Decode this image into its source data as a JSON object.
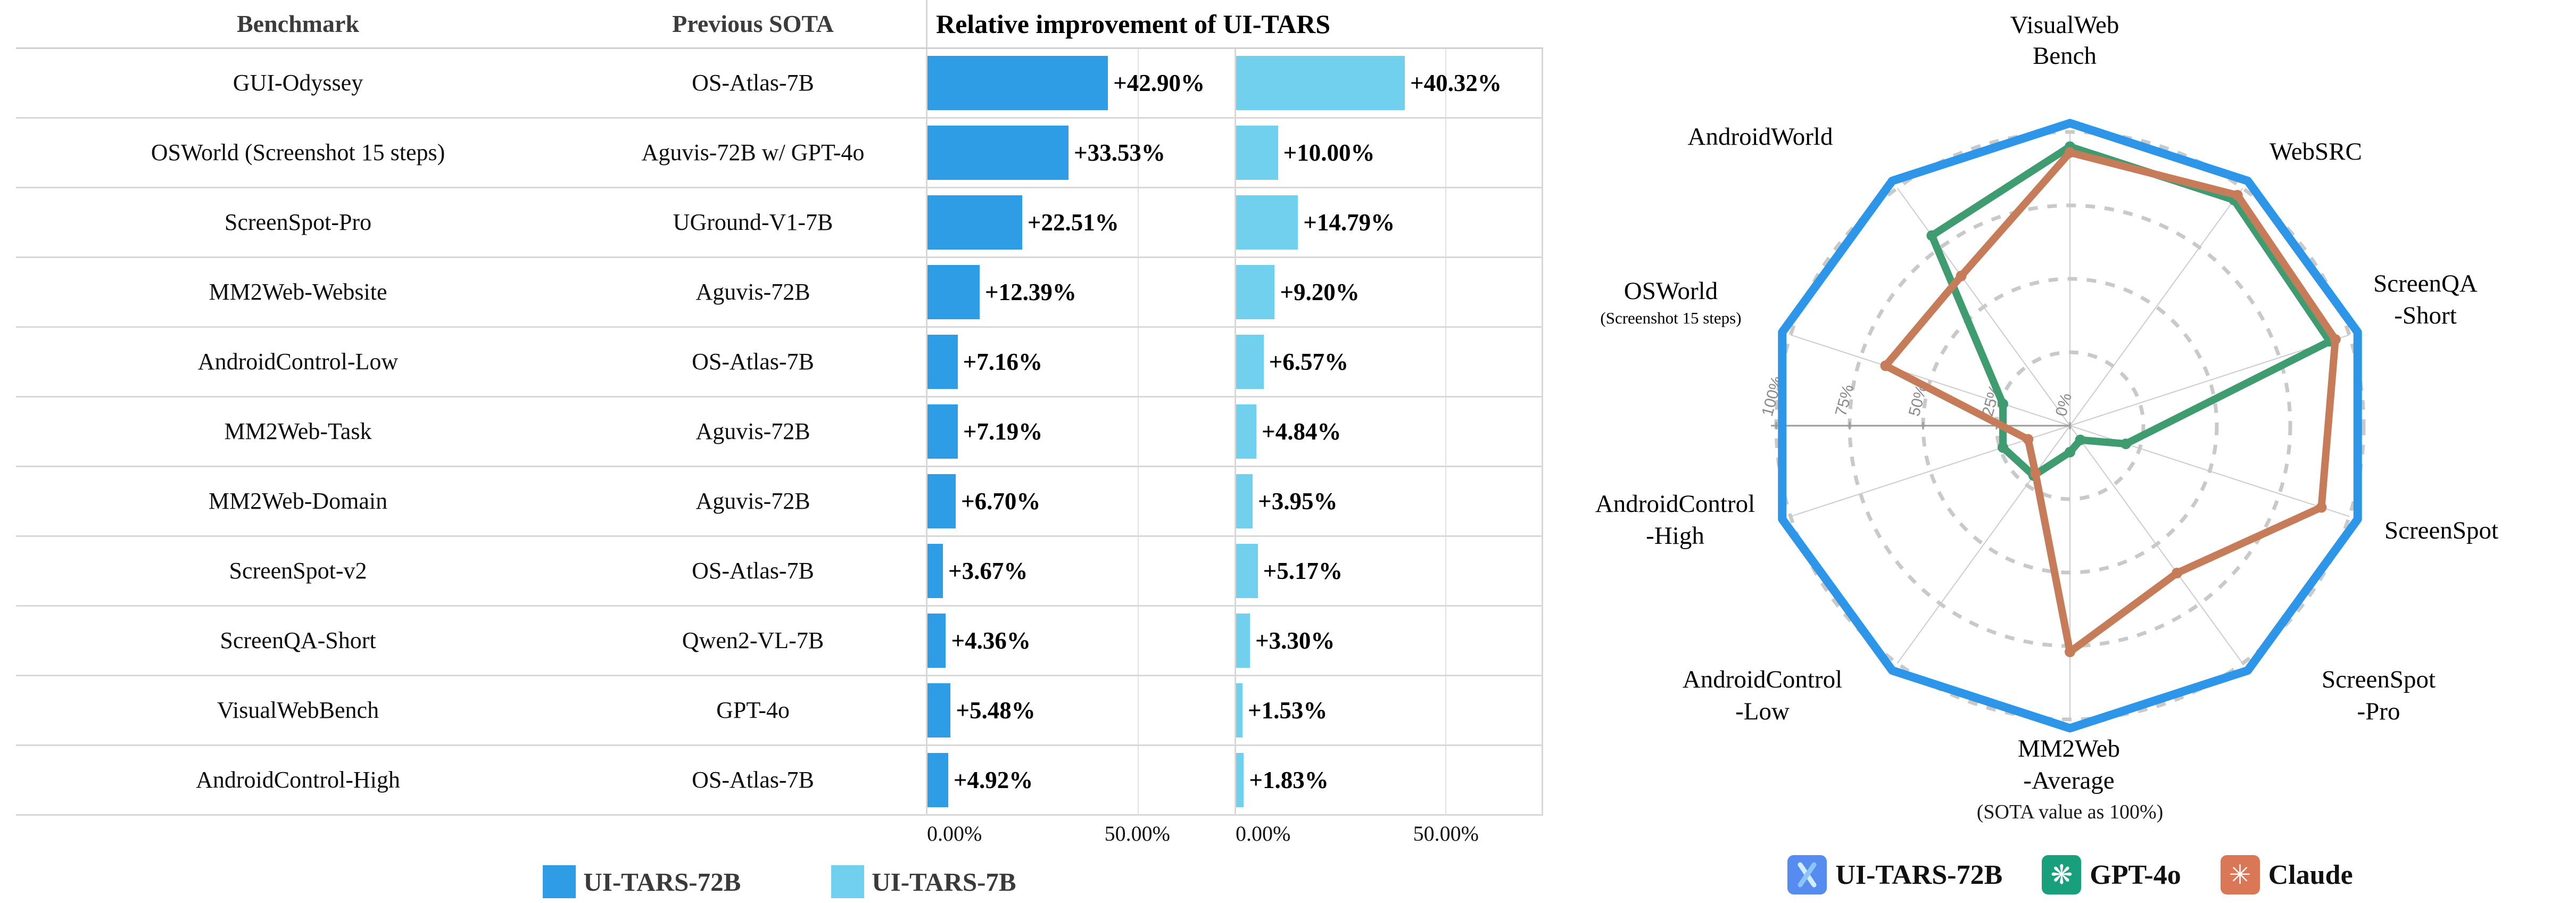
{
  "table": {
    "headers": {
      "benchmark": "Benchmark",
      "previous_sota": "Previous SOTA",
      "improvement": "Relative improvement of UI-TARS"
    },
    "rows": [
      {
        "benchmark": "GUI-Odyssey",
        "previous_sota": "OS-Atlas-7B",
        "uitars_72b_label": "+42.90%",
        "uitars_72b": 42.9,
        "uitars_7b_label": "+40.32%",
        "uitars_7b": 40.32
      },
      {
        "benchmark": "OSWorld (Screenshot 15 steps)",
        "previous_sota": "Aguvis-72B w/ GPT-4o",
        "uitars_72b_label": "+33.53%",
        "uitars_72b": 33.53,
        "uitars_7b_label": "+10.00%",
        "uitars_7b": 10.0
      },
      {
        "benchmark": "ScreenSpot-Pro",
        "previous_sota": "UGround-V1-7B",
        "uitars_72b_label": "+22.51%",
        "uitars_72b": 22.51,
        "uitars_7b_label": "+14.79%",
        "uitars_7b": 14.79
      },
      {
        "benchmark": "MM2Web-Website",
        "previous_sota": "Aguvis-72B",
        "uitars_72b_label": "+12.39%",
        "uitars_72b": 12.39,
        "uitars_7b_label": "+9.20%",
        "uitars_7b": 9.2
      },
      {
        "benchmark": "AndroidControl-Low",
        "previous_sota": "OS-Atlas-7B",
        "uitars_72b_label": "+7.16%",
        "uitars_72b": 7.16,
        "uitars_7b_label": "+6.57%",
        "uitars_7b": 6.57
      },
      {
        "benchmark": "MM2Web-Task",
        "previous_sota": "Aguvis-72B",
        "uitars_72b_label": "+7.19%",
        "uitars_72b": 7.19,
        "uitars_7b_label": "+4.84%",
        "uitars_7b": 4.84
      },
      {
        "benchmark": "MM2Web-Domain",
        "previous_sota": "Aguvis-72B",
        "uitars_72b_label": "+6.70%",
        "uitars_72b": 6.7,
        "uitars_7b_label": "+3.95%",
        "uitars_7b": 3.95
      },
      {
        "benchmark": "ScreenSpot-v2",
        "previous_sota": "OS-Atlas-7B",
        "uitars_72b_label": "+3.67%",
        "uitars_72b": 3.67,
        "uitars_7b_label": "+5.17%",
        "uitars_7b": 5.17
      },
      {
        "benchmark": "ScreenQA-Short",
        "previous_sota": "Qwen2-VL-7B",
        "uitars_72b_label": "+4.36%",
        "uitars_72b": 4.36,
        "uitars_7b_label": "+3.30%",
        "uitars_7b": 3.3
      },
      {
        "benchmark": "VisualWebBench",
        "previous_sota": "GPT-4o",
        "uitars_72b_label": "+5.48%",
        "uitars_72b": 5.48,
        "uitars_7b_label": "+1.53%",
        "uitars_7b": 1.53
      },
      {
        "benchmark": "AndroidControl-High",
        "previous_sota": "OS-Atlas-7B",
        "uitars_72b_label": "+4.92%",
        "uitars_72b": 4.92,
        "uitars_7b_label": "+1.83%",
        "uitars_7b": 1.83
      }
    ],
    "axis": {
      "tick_zero": "0.00%",
      "tick_fifty": "50.00%",
      "tick_fifty_value": 50,
      "axis_max": 73
    },
    "legend": [
      {
        "label": "UI-TARS-72B",
        "color": "#2F9CE6"
      },
      {
        "label": "UI-TARS-7B",
        "color": "#70D0EE"
      }
    ]
  },
  "radar": {
    "note": "(SOTA value as 100%)",
    "rtick_labels": [
      "0%",
      "25%",
      "50%",
      "75%",
      "100%"
    ],
    "axis_display": [
      {
        "lines": [
          "VisualWeb",
          "Bench"
        ]
      },
      {
        "lines": [
          "WebSRC"
        ]
      },
      {
        "lines": [
          "ScreenQA",
          "-Short"
        ]
      },
      {
        "lines": [
          "ScreenSpot"
        ]
      },
      {
        "lines": [
          "ScreenSpot",
          "-Pro"
        ]
      },
      {
        "lines": [
          "MM2Web",
          "-Average"
        ]
      },
      {
        "lines": [
          "AndroidControl",
          "-Low"
        ]
      },
      {
        "lines": [
          "AndroidControl",
          "-High"
        ]
      },
      {
        "lines": [
          "OSWorld"
        ],
        "small": "(Screenshot 15 steps)"
      },
      {
        "lines": [
          "AndroidWorld"
        ]
      }
    ],
    "legend": [
      {
        "label": "UI-TARS-72B",
        "icon": "uitars-logo-icon",
        "icon_color": "#568CEF",
        "glyph": ""
      },
      {
        "label": "GPT-4o",
        "icon": "openai-logo-icon",
        "icon_color": "#18A07C",
        "glyph": "❋"
      },
      {
        "label": "Claude",
        "icon": "anthropic-logo-icon",
        "icon_color": "#D97757",
        "glyph": "✳"
      }
    ]
  },
  "chart_data": [
    {
      "type": "bar",
      "orientation": "horizontal",
      "title": "Relative improvement of UI-TARS",
      "categories": [
        "GUI-Odyssey",
        "OSWorld (Screenshot 15 steps)",
        "ScreenSpot-Pro",
        "MM2Web-Website",
        "AndroidControl-Low",
        "MM2Web-Task",
        "MM2Web-Domain",
        "ScreenSpot-v2",
        "ScreenQA-Short",
        "VisualWebBench",
        "AndroidControl-High"
      ],
      "series": [
        {
          "name": "UI-TARS-72B",
          "color": "#2F9CE6",
          "values": [
            42.9,
            33.53,
            22.51,
            12.39,
            7.16,
            7.19,
            6.7,
            3.67,
            4.36,
            5.48,
            4.92
          ]
        },
        {
          "name": "UI-TARS-7B",
          "color": "#70D0EE",
          "values": [
            40.32,
            10.0,
            14.79,
            9.2,
            6.57,
            4.84,
            3.95,
            5.17,
            3.3,
            1.53,
            1.83
          ]
        }
      ],
      "xlabel": "",
      "ylabel": "",
      "xlim": [
        0,
        73
      ],
      "xticks": [
        "0.00%",
        "50.00%"
      ],
      "grid": "x-at-0-and-50"
    },
    {
      "type": "radar",
      "note": "(SOTA value as 100%)",
      "categories": [
        "VisualWebBench",
        "WebSRC",
        "ScreenQA-Short",
        "ScreenSpot",
        "ScreenSpot-Pro",
        "MM2Web-Average",
        "AndroidControl-Low",
        "AndroidControl-High",
        "OSWorld (Screenshot 15 steps)",
        "AndroidWorld"
      ],
      "rlim": [
        0,
        100
      ],
      "rticks": [
        0,
        25,
        50,
        75,
        100
      ],
      "gridlines": "dashed-circles",
      "series": [
        {
          "name": "UI-TARS-72B",
          "color": "#2E96E8",
          "values": [
            103,
            103,
            103,
            103,
            103,
            103,
            103,
            103,
            103,
            103
          ]
        },
        {
          "name": "GPT-4o",
          "color": "#3F9C70",
          "values": [
            95,
            95,
            93,
            20,
            6,
            9,
            21,
            24,
            24,
            80
          ]
        },
        {
          "name": "Claude",
          "color": "#C77C59",
          "values": [
            93,
            97,
            95,
            90,
            62,
            77,
            20,
            15,
            66,
            63
          ]
        }
      ],
      "legend_position": "bottom"
    }
  ]
}
